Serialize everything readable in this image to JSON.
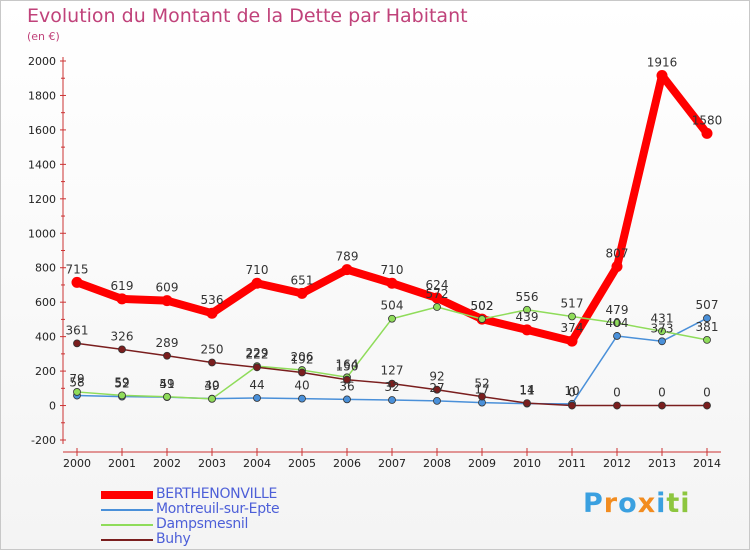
{
  "title": "Evolution du Montant de la Dette par Habitant",
  "unit": "(en €)",
  "brand": "Proxiti",
  "chart_data": {
    "type": "line",
    "x": [
      "2000",
      "2001",
      "2002",
      "2003",
      "2004",
      "2005",
      "2006",
      "2007",
      "2008",
      "2009",
      "2010",
      "2011",
      "2012",
      "2013",
      "2014"
    ],
    "ylim": [
      -200,
      2000
    ],
    "yticks": [
      "-200",
      "0",
      "200",
      "400",
      "600",
      "800",
      "1000",
      "1200",
      "1400",
      "1600",
      "1800",
      "2000"
    ],
    "grid": false,
    "legend_position": "bottom-left",
    "series": [
      {
        "name": "BERTHENONVILLE",
        "color": "#ff0000",
        "values": [
          715,
          619,
          609,
          536,
          710,
          651,
          789,
          710,
          624,
          502,
          439,
          374,
          807,
          1916,
          1580
        ],
        "labels": [
          "715",
          "619",
          "609",
          "536",
          "710",
          "651",
          "789",
          "710",
          "624",
          "502",
          "439",
          "374",
          "807",
          "1916",
          "1580"
        ]
      },
      {
        "name": "Montreuil-sur-Epte",
        "color": "#4a90d9",
        "values": [
          58,
          52,
          49,
          40,
          44,
          40,
          36,
          32,
          27,
          17,
          11,
          10,
          404,
          373,
          507
        ],
        "labels": [
          "58",
          "52",
          "49",
          "40",
          "44",
          "40",
          "36",
          "32",
          "27",
          "17",
          "11",
          "10",
          "404",
          "373",
          "507"
        ]
      },
      {
        "name": "Dampsmesnil",
        "color": "#8fdc5a",
        "values": [
          79,
          59,
          51,
          39,
          229,
          206,
          164,
          504,
          572,
          502,
          556,
          517,
          479,
          431,
          381
        ],
        "labels": [
          "79",
          "59",
          "51",
          "39",
          "229",
          "206",
          "164",
          "504",
          "572",
          "502",
          "556",
          "517",
          "479",
          "431",
          "381"
        ]
      },
      {
        "name": "Buhy",
        "color": "#7a1e1e",
        "values": [
          361,
          326,
          289,
          250,
          222,
          192,
          150,
          127,
          92,
          52,
          14,
          0,
          0,
          0,
          0
        ],
        "labels": [
          "361",
          "326",
          "289",
          "250",
          "222",
          "192",
          "150",
          "127",
          "92",
          "52",
          "14",
          "0",
          "0",
          "0",
          "0"
        ]
      }
    ]
  },
  "colors": {
    "title": "#c0427a",
    "axis": "#cc3333",
    "legend_text": "#4d5fd8"
  },
  "brand_colors": [
    "#3aa0e0",
    "#f28c1f",
    "#3aa0e0",
    "#f28c1f",
    "#3aa0e0",
    "#8dc63f",
    "#8dc63f"
  ]
}
